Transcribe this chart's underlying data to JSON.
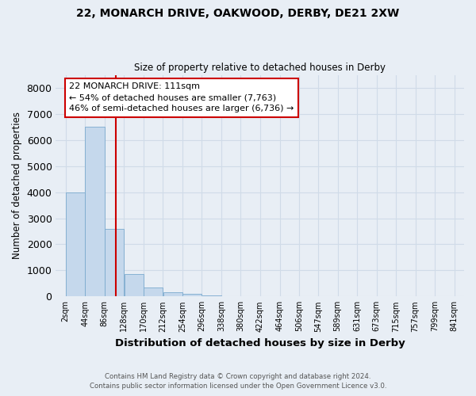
{
  "title1": "22, MONARCH DRIVE, OAKWOOD, DERBY, DE21 2XW",
  "title2": "Size of property relative to detached houses in Derby",
  "xlabel": "Distribution of detached houses by size in Derby",
  "ylabel": "Number of detached properties",
  "footnote1": "Contains HM Land Registry data © Crown copyright and database right 2024.",
  "footnote2": "Contains public sector information licensed under the Open Government Licence v3.0.",
  "bin_edges": [
    2,
    44,
    86,
    128,
    170,
    212,
    254,
    296,
    338,
    380,
    422,
    464,
    506,
    547,
    589,
    631,
    673,
    715,
    757,
    799,
    841
  ],
  "bar_heights": [
    4000,
    6500,
    2600,
    850,
    350,
    150,
    100,
    50,
    0,
    0,
    0,
    0,
    0,
    0,
    0,
    0,
    0,
    0,
    0,
    0
  ],
  "bar_color": "#c5d8ec",
  "bar_edge_color": "#7aaace",
  "background_color": "#e8eef5",
  "grid_color": "#d0dbe8",
  "property_size": 111,
  "red_line_color": "#cc0000",
  "annotation_line1": "22 MONARCH DRIVE: 111sqm",
  "annotation_line2": "← 54% of detached houses are smaller (7,763)",
  "annotation_line3": "46% of semi-detached houses are larger (6,736) →",
  "annotation_box_color": "#ffffff",
  "annotation_box_edge": "#cc0000",
  "ylim": [
    0,
    8500
  ],
  "yticks": [
    0,
    1000,
    2000,
    3000,
    4000,
    5000,
    6000,
    7000,
    8000
  ],
  "tick_labels": [
    "2sqm",
    "44sqm",
    "86sqm",
    "128sqm",
    "170sqm",
    "212sqm",
    "254sqm",
    "296sqm",
    "338sqm",
    "380sqm",
    "422sqm",
    "464sqm",
    "506sqm",
    "547sqm",
    "589sqm",
    "631sqm",
    "673sqm",
    "715sqm",
    "757sqm",
    "799sqm",
    "841sqm"
  ]
}
